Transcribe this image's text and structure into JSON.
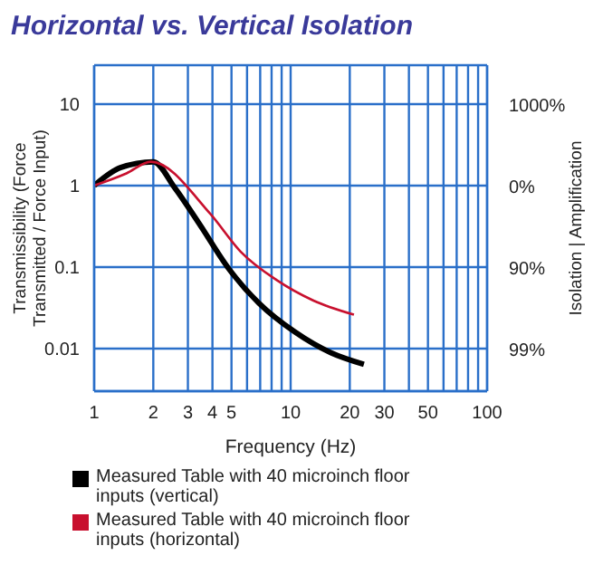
{
  "chart_data": {
    "type": "line",
    "title": "Horizontal vs. Vertical Isolation",
    "xlabel": "Frequency (Hz)",
    "ylabel": "Transmissibility (Force Transmitted / Force Input)",
    "y2label": "Isolation | Amplification",
    "log": "xy",
    "xlim": [
      1,
      100
    ],
    "xticks": [
      1,
      2,
      3,
      4,
      5,
      {
        "value": 6,
        "label": null
      },
      {
        "value": 7,
        "label": null
      },
      {
        "value": 8,
        "label": null
      },
      {
        "value": 9,
        "label": null
      },
      10,
      20,
      30,
      {
        "value": 40,
        "label": null
      },
      50,
      {
        "value": 60,
        "label": null
      },
      {
        "value": 70,
        "label": null
      },
      {
        "value": 80,
        "label": null
      },
      {
        "value": 90,
        "label": null
      },
      100
    ],
    "ylim": [
      0.003,
      30
    ],
    "yticks": [
      0.01,
      0.1,
      1,
      10
    ],
    "annotations": [
      "99%",
      "90%",
      "0%",
      "1000%"
    ],
    "grid": true,
    "legend": "bottom",
    "marker": "none",
    "line_style": "solid",
    "series": [
      {
        "name": "Measured Table with 40 microinch floor inputs (vertical)",
        "color": "#000000",
        "x": [
          1,
          1.36,
          2,
          2.57,
          3.4,
          4.85,
          6.9,
          10.5,
          16,
          23.6
        ],
        "values": [
          1,
          1.66,
          1.96,
          0.94,
          0.35,
          0.095,
          0.036,
          0.016,
          0.0089,
          0.0064
        ]
      },
      {
        "name": "Measured Table with 40 microinch floor inputs (horizontal)",
        "color": "#c8102e",
        "x": [
          1,
          1.46,
          1.94,
          3.9,
          5.56,
          8.5,
          13,
          21
        ],
        "values": [
          1,
          1.41,
          1.96,
          0.45,
          0.155,
          0.069,
          0.039,
          0.026
        ]
      }
    ]
  }
}
